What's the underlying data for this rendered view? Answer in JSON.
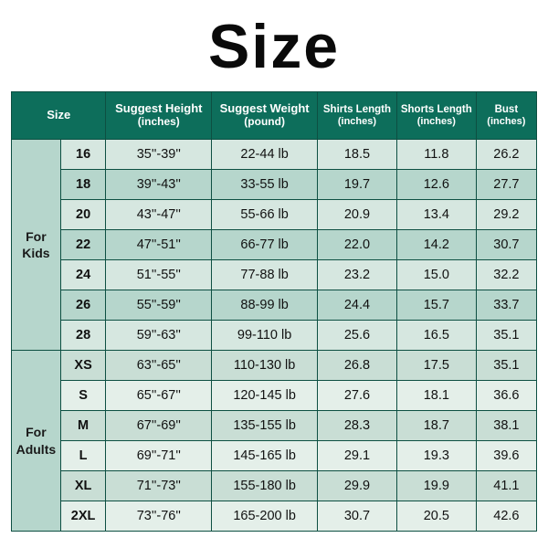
{
  "title": "Size",
  "headers": {
    "size": "Size",
    "height": "Suggest Height",
    "height_unit": "(inches)",
    "weight": "Suggest Weight",
    "weight_unit": "(pound)",
    "shirts": "Shirts Length",
    "shirts_unit": "(inches)",
    "shorts": "Shorts Length",
    "shorts_unit": "(inches)",
    "bust": "Bust",
    "bust_unit": "(inches)"
  },
  "groups": [
    {
      "label_line1": "For",
      "label_line2": "Kids",
      "bg_classes": [
        "kids-even",
        "kids-odd"
      ],
      "rows": [
        {
          "size": "16",
          "height": "35''-39''",
          "weight": "22-44 lb",
          "shirts": "18.5",
          "shorts": "11.8",
          "bust": "26.2"
        },
        {
          "size": "18",
          "height": "39''-43''",
          "weight": "33-55 lb",
          "shirts": "19.7",
          "shorts": "12.6",
          "bust": "27.7"
        },
        {
          "size": "20",
          "height": "43''-47''",
          "weight": "55-66 lb",
          "shirts": "20.9",
          "shorts": "13.4",
          "bust": "29.2"
        },
        {
          "size": "22",
          "height": "47''-51''",
          "weight": "66-77 lb",
          "shirts": "22.0",
          "shorts": "14.2",
          "bust": "30.7"
        },
        {
          "size": "24",
          "height": "51''-55''",
          "weight": "77-88 lb",
          "shirts": "23.2",
          "shorts": "15.0",
          "bust": "32.2"
        },
        {
          "size": "26",
          "height": "55''-59''",
          "weight": "88-99 lb",
          "shirts": "24.4",
          "shorts": "15.7",
          "bust": "33.7"
        },
        {
          "size": "28",
          "height": "59''-63''",
          "weight": "99-110 lb",
          "shirts": "25.6",
          "shorts": "16.5",
          "bust": "35.1"
        }
      ]
    },
    {
      "label_line1": "For",
      "label_line2": "Adults",
      "bg_classes": [
        "adult-even",
        "adult-odd"
      ],
      "rows": [
        {
          "size": "XS",
          "height": "63''-65''",
          "weight": "110-130 lb",
          "shirts": "26.8",
          "shorts": "17.5",
          "bust": "35.1"
        },
        {
          "size": "S",
          "height": "65''-67''",
          "weight": "120-145 lb",
          "shirts": "27.6",
          "shorts": "18.1",
          "bust": "36.6"
        },
        {
          "size": "M",
          "height": "67''-69''",
          "weight": "135-155 lb",
          "shirts": "28.3",
          "shorts": "18.7",
          "bust": "38.1"
        },
        {
          "size": "L",
          "height": "69''-71''",
          "weight": "145-165 lb",
          "shirts": "29.1",
          "shorts": "19.3",
          "bust": "39.6"
        },
        {
          "size": "XL",
          "height": "71''-73''",
          "weight": "155-180 lb",
          "shirts": "29.9",
          "shorts": "19.9",
          "bust": "41.1"
        },
        {
          "size": "2XL",
          "height": "73''-76''",
          "weight": "165-200 lb",
          "shirts": "30.7",
          "shorts": "20.5",
          "bust": "42.6"
        }
      ]
    }
  ]
}
